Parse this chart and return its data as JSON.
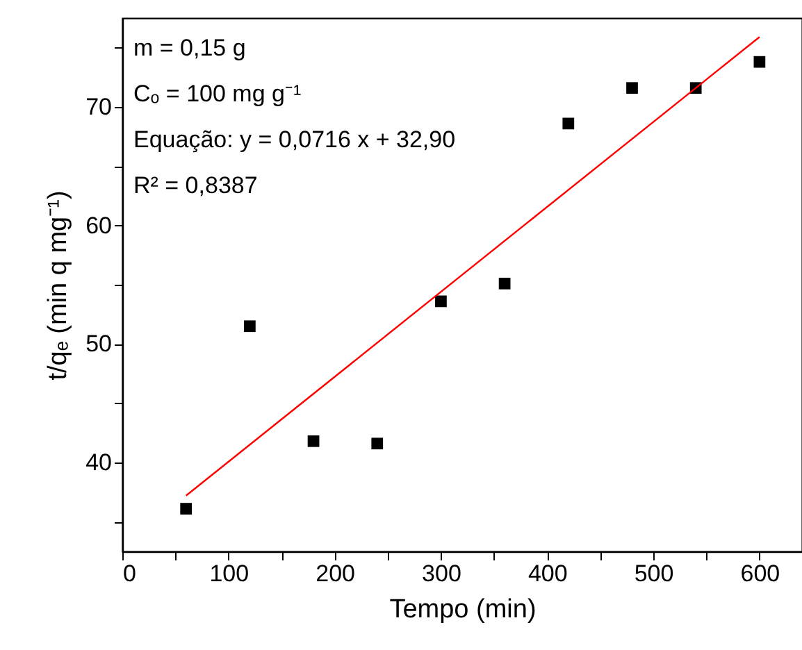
{
  "chart_data": {
    "type": "scatter",
    "xlabel": "Tempo (min)",
    "ylabel": "t/qₑ (min q mg⁻¹)",
    "xlim": [
      0,
      640
    ],
    "xticks": [
      0,
      {
        "value": 50,
        "label": null
      },
      100,
      {
        "value": 150,
        "label": null
      },
      200,
      {
        "value": 250,
        "label": null
      },
      300,
      {
        "value": 350,
        "label": null
      },
      400,
      {
        "value": 450,
        "label": null
      },
      500,
      {
        "value": 550,
        "label": null
      },
      600
    ],
    "ylim": [
      32.5,
      77.5
    ],
    "yticks": [
      {
        "value": 35,
        "label": null
      },
      40,
      {
        "value": 45,
        "label": null
      },
      50,
      {
        "value": 55,
        "label": null
      },
      60,
      {
        "value": 65,
        "label": null
      },
      70,
      {
        "value": 75,
        "label": null
      }
    ],
    "grid": false,
    "series": [
      {
        "marker": "square",
        "color": "#000000",
        "x": [
          60,
          120,
          180,
          240,
          300,
          360,
          420,
          480,
          540,
          600
        ],
        "values": [
          36.1,
          51.5,
          41.8,
          41.6,
          53.6,
          55.1,
          68.6,
          71.6,
          71.6,
          73.8
        ]
      },
      {
        "type": "line",
        "color": "#ff0000",
        "x": [
          60,
          600
        ],
        "values": [
          37.2,
          75.9
        ]
      }
    ],
    "annotations": [
      "m = 0,15 g",
      "Cₒ = 100 mg g⁻¹",
      "Equação: y = 0,0716 x + 32,90",
      "R² = 0,8387"
    ]
  }
}
